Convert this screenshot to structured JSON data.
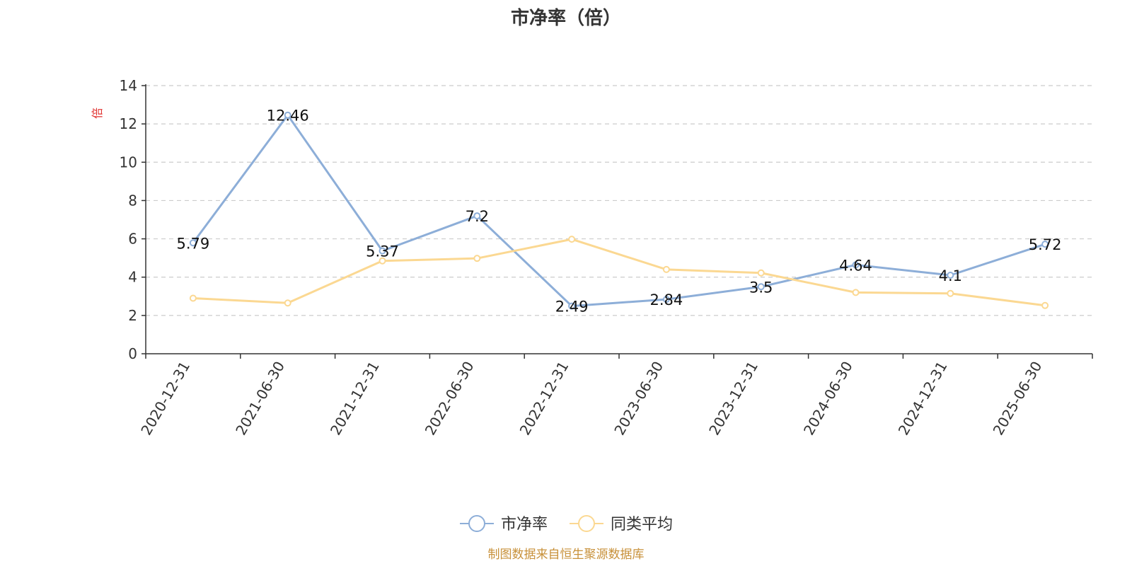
{
  "chart_data": {
    "type": "line",
    "title": "市净率（倍）",
    "ylabel": "倍",
    "ylim": [
      0,
      14
    ],
    "yticks": [
      0,
      2,
      4,
      6,
      8,
      10,
      12,
      14
    ],
    "categories": [
      "2020-12-31",
      "2021-06-30",
      "2021-12-31",
      "2022-06-30",
      "2022-12-31",
      "2023-06-30",
      "2023-12-31",
      "2024-06-30",
      "2024-12-31",
      "2025-06-30"
    ],
    "grid": true,
    "legend_position": "bottom",
    "series": [
      {
        "name": "市净率",
        "color": "#8daed8",
        "values": [
          5.79,
          12.46,
          5.37,
          7.2,
          2.49,
          2.84,
          3.5,
          4.64,
          4.1,
          5.72
        ],
        "labels": [
          "5.79",
          "12.46",
          "5.37",
          "7.2",
          "2.49",
          "2.84",
          "3.5",
          "4.64",
          "4.1",
          "5.72"
        ]
      },
      {
        "name": "同类平均",
        "color": "#fbd892",
        "values": [
          2.9,
          2.65,
          4.85,
          4.98,
          5.98,
          4.4,
          4.22,
          3.2,
          3.15,
          2.52
        ]
      }
    ]
  },
  "source": "制图数据来自恒生聚源数据库"
}
